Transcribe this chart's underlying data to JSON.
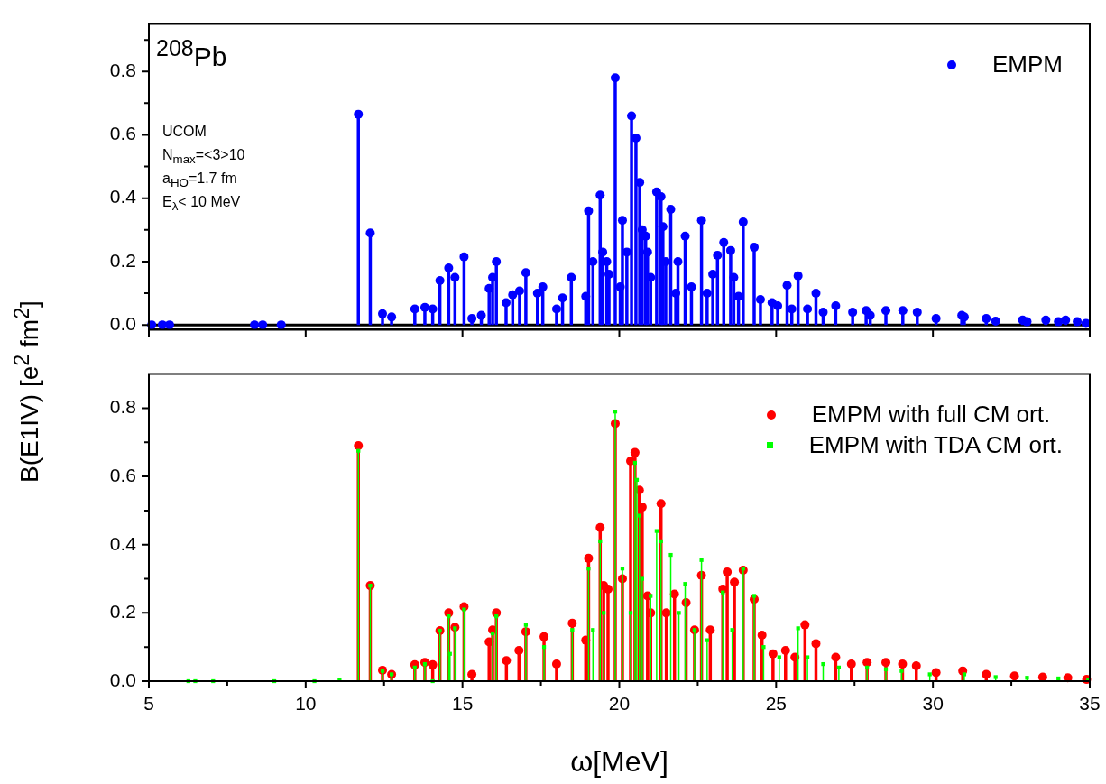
{
  "chart_data": [
    {
      "type": "lollipop",
      "ylabel": "B(E1IV) [e$^{2}$ fm$^{2}$]",
      "annotations": [
        "$^{208}$Pb",
        "UCOM",
        "N$_{max}$=<3>10",
        "a$_{HO}$=1.7 fm",
        "E$_{λ}$< 10 MeV"
      ],
      "xlim": [
        5,
        35
      ],
      "xticks": [
        5,
        10,
        15,
        20,
        25,
        30,
        35
      ],
      "ylim": [
        -0.015,
        0.95
      ],
      "yticks": [
        {
          "value": 0,
          "label": "0.0"
        },
        {
          "value": 0.1,
          "label": null
        },
        {
          "value": 0.2,
          "label": "0.2"
        },
        {
          "value": 0.3,
          "label": null
        },
        {
          "value": 0.4,
          "label": "0.4"
        },
        {
          "value": 0.5,
          "label": null
        },
        {
          "value": 0.6,
          "label": "0.6"
        },
        {
          "value": 0.7,
          "label": null
        },
        {
          "value": 0.8,
          "label": "0.8"
        },
        {
          "value": 0.9,
          "label": null
        }
      ],
      "tick_labels": "y",
      "grid": false,
      "ref_lines": [
        {
          "axis": "y",
          "value": 0,
          "color": "#000000"
        }
      ],
      "legend": "top right",
      "marker": "circle",
      "series": [
        {
          "name": "EMPM",
          "color": "#0000ff",
          "x": [
            5.09,
            5.43,
            5.66,
            8.37,
            8.63,
            9.22,
            11.68,
            12.06,
            12.45,
            12.74,
            13.48,
            13.8,
            14.05,
            14.28,
            14.56,
            14.76,
            15.05,
            15.3,
            15.6,
            15.85,
            15.96,
            16.08,
            16.39,
            16.6,
            16.82,
            17.02,
            17.39,
            17.56,
            18.0,
            18.19,
            18.47,
            18.93,
            19.02,
            19.16,
            19.39,
            19.47,
            19.6,
            19.67,
            19.87,
            20.03,
            20.1,
            20.24,
            20.39,
            20.53,
            20.65,
            20.73,
            20.84,
            20.9,
            21.0,
            21.19,
            21.33,
            21.39,
            21.48,
            21.64,
            21.8,
            21.87,
            22.1,
            22.3,
            22.62,
            22.8,
            22.98,
            23.13,
            23.33,
            23.55,
            23.65,
            23.8,
            23.95,
            24.3,
            24.5,
            24.87,
            25.05,
            25.35,
            25.5,
            25.7,
            26.0,
            26.27,
            26.5,
            26.9,
            27.44,
            27.87,
            28.0,
            28.5,
            29.04,
            29.5,
            30.1,
            30.92,
            31.0,
            31.7,
            32.0,
            32.86,
            33.0,
            33.6,
            34.0,
            34.23,
            34.6,
            34.88
          ],
          "values": [
            0,
            0,
            0,
            0,
            0,
            0,
            0.665,
            0.29,
            0.035,
            0.025,
            0.05,
            0.055,
            0.05,
            0.14,
            0.18,
            0.15,
            0.215,
            0.02,
            0.03,
            0.115,
            0.15,
            0.2,
            0.07,
            0.095,
            0.107,
            0.165,
            0.1,
            0.12,
            0.05,
            0.085,
            0.15,
            0.09,
            0.36,
            0.2,
            0.41,
            0.23,
            0.2,
            0.16,
            0.78,
            0.12,
            0.33,
            0.23,
            0.66,
            0.59,
            0.45,
            0.3,
            0.28,
            0.23,
            0.15,
            0.42,
            0.405,
            0.31,
            0.2,
            0.365,
            0.1,
            0.2,
            0.28,
            0.12,
            0.33,
            0.1,
            0.16,
            0.22,
            0.26,
            0.235,
            0.15,
            0.09,
            0.325,
            0.245,
            0.08,
            0.07,
            0.06,
            0.125,
            0.05,
            0.155,
            0.05,
            0.1,
            0.04,
            0.06,
            0.04,
            0.045,
            0.03,
            0.045,
            0.045,
            0.04,
            0.02,
            0.03,
            0.025,
            0.02,
            0.012,
            0.015,
            0.01,
            0.015,
            0.01,
            0.015,
            0.01,
            0.005
          ]
        }
      ]
    },
    {
      "type": "lollipop",
      "xlabel": "ω[MeV]",
      "xlim": [
        5,
        35
      ],
      "xticks": [
        5,
        {
          "value": 7.5,
          "label": null
        },
        10,
        {
          "value": 12.5,
          "label": null
        },
        15,
        {
          "value": 17.5,
          "label": null
        },
        20,
        {
          "value": 22.5,
          "label": null
        },
        25,
        {
          "value": 27.5,
          "label": null
        },
        30,
        {
          "value": 32.5,
          "label": null
        },
        35
      ],
      "ylim": [
        0,
        0.9
      ],
      "yticks": [
        {
          "value": 0,
          "label": "0.0"
        },
        {
          "value": 0.1,
          "label": null
        },
        {
          "value": 0.2,
          "label": "0.2"
        },
        {
          "value": 0.3,
          "label": null
        },
        {
          "value": 0.4,
          "label": "0.4"
        },
        {
          "value": 0.5,
          "label": null
        },
        {
          "value": 0.6,
          "label": "0.6"
        },
        {
          "value": 0.7,
          "label": null
        },
        {
          "value": 0.8,
          "label": "0.8"
        }
      ],
      "grid": false,
      "legend": "top right",
      "series": [
        {
          "name": "EMPM with full CM ort.",
          "color": "#ff0000",
          "marker": "circle",
          "x": [
            11.68,
            12.06,
            12.45,
            12.74,
            13.48,
            13.8,
            14.05,
            14.28,
            14.56,
            14.76,
            15.05,
            15.3,
            15.85,
            15.96,
            16.08,
            16.4,
            16.8,
            17.02,
            17.6,
            18.0,
            18.5,
            18.93,
            19.02,
            19.39,
            19.5,
            19.64,
            19.87,
            20.1,
            20.36,
            20.5,
            20.64,
            20.73,
            20.9,
            21.0,
            21.33,
            21.5,
            21.76,
            22.13,
            22.4,
            22.62,
            22.9,
            23.3,
            23.44,
            23.67,
            23.95,
            24.3,
            24.55,
            24.9,
            25.3,
            25.6,
            25.92,
            26.27,
            26.9,
            27.4,
            27.9,
            28.5,
            29.03,
            29.47,
            30.1,
            30.95,
            31.7,
            32.6,
            33.5,
            34.3,
            34.9
          ],
          "values": [
            0.69,
            0.28,
            0.032,
            0.02,
            0.048,
            0.055,
            0.048,
            0.148,
            0.2,
            0.158,
            0.218,
            0.02,
            0.115,
            0.15,
            0.2,
            0.06,
            0.09,
            0.145,
            0.13,
            0.05,
            0.17,
            0.12,
            0.36,
            0.45,
            0.28,
            0.27,
            0.755,
            0.3,
            0.645,
            0.67,
            0.56,
            0.51,
            0.25,
            0.2,
            0.52,
            0.2,
            0.255,
            0.23,
            0.15,
            0.31,
            0.15,
            0.27,
            0.32,
            0.29,
            0.325,
            0.24,
            0.135,
            0.08,
            0.09,
            0.07,
            0.165,
            0.11,
            0.07,
            0.05,
            0.055,
            0.055,
            0.05,
            0.045,
            0.025,
            0.03,
            0.02,
            0.015,
            0.012,
            0.01,
            0.005
          ]
        },
        {
          "name": "EMPM with TDA CM ort.",
          "color": "#00ff00",
          "marker": "square",
          "x": [
            6.26,
            6.48,
            7.05,
            9.0,
            10.28,
            11.08,
            11.68,
            12.06,
            12.45,
            12.74,
            13.48,
            13.8,
            14.05,
            14.28,
            14.56,
            14.6,
            14.76,
            15.05,
            15.96,
            16.08,
            17.02,
            17.6,
            18.5,
            19.02,
            19.16,
            19.39,
            19.5,
            19.87,
            20.1,
            20.36,
            20.5,
            20.56,
            20.64,
            20.73,
            21.0,
            21.19,
            21.33,
            21.64,
            21.9,
            22.1,
            22.4,
            22.62,
            22.8,
            23.3,
            23.6,
            23.95,
            24.3,
            24.6,
            25.1,
            25.7,
            26.0,
            26.5,
            27.0,
            27.9,
            28.5,
            29.0,
            29.9,
            31.0,
            32.0,
            33.0,
            34.0,
            34.95
          ],
          "values": [
            0,
            0,
            0,
            0,
            0,
            0.005,
            0.675,
            0.28,
            0.03,
            0.02,
            0.04,
            0.05,
            0,
            0.148,
            0.19,
            0.08,
            0.155,
            0.21,
            0.14,
            0.19,
            0.165,
            0.1,
            0.15,
            0.33,
            0.15,
            0.41,
            0.2,
            0.79,
            0.33,
            0.2,
            0.64,
            0.59,
            0.485,
            0.3,
            0.25,
            0.44,
            0.41,
            0.37,
            0.2,
            0.285,
            0.15,
            0.355,
            0.12,
            0.26,
            0.15,
            0.33,
            0.25,
            0.1,
            0.07,
            0.155,
            0.07,
            0.05,
            0.04,
            0.04,
            0.035,
            0.03,
            0.02,
            0.02,
            0.012,
            0.01,
            0.008,
            0.004
          ]
        }
      ]
    }
  ]
}
